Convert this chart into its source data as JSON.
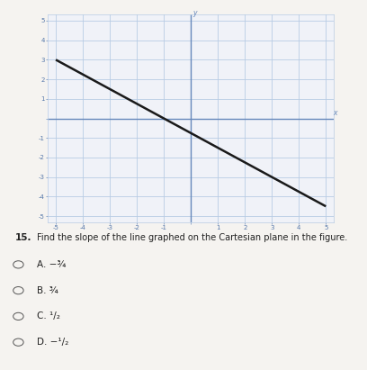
{
  "question_number": "15.",
  "question_text": "Find the slope of the line graphed on the Cartesian plane in the figure.",
  "choice_texts": [
    "A. −¾",
    "B. ¾",
    "C. ¹/₂",
    "D. −¹/₂"
  ],
  "xmin": -5,
  "xmax": 5,
  "ymin": -5,
  "ymax": 5,
  "slope": -0.75,
  "intercept": -0.75,
  "line_x_start": -5,
  "line_x_end": 5,
  "grid_color": "#b8cce4",
  "axis_color": "#6688bb",
  "line_color": "#1a1a1a",
  "bg_color": "#f5f3f0",
  "plot_bg_color": "#f0f2f8",
  "tick_label_color": "#5577aa",
  "axis_label_italic_color": "#6688bb",
  "question_fontsize": 7.5,
  "choice_fontsize": 7.5
}
